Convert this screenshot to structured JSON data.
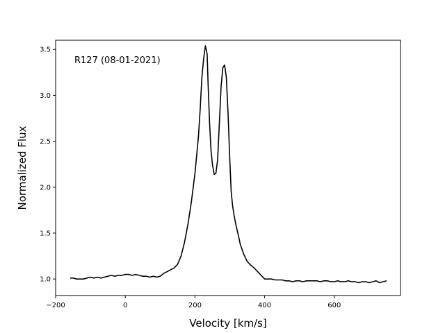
{
  "chart_data": {
    "type": "line",
    "title": "",
    "annotation": "R127 (08-01-2021)",
    "xlabel": "Velocity [km/s]",
    "ylabel": "Normalized Flux",
    "xlim": [
      -200,
      790
    ],
    "ylim": [
      0.82,
      3.6
    ],
    "xticks": [
      -200,
      0,
      200,
      400,
      600
    ],
    "xtick_labels": [
      "−200",
      "0",
      "200",
      "400",
      "600"
    ],
    "yticks": [
      1.0,
      1.5,
      2.0,
      2.5,
      3.0,
      3.5
    ],
    "ytick_labels": [
      "1.0",
      "1.5",
      "2.0",
      "2.5",
      "3.0",
      "3.5"
    ],
    "grid": false,
    "series": [
      {
        "color": "#000000",
        "x": [
          -158,
          -150,
          -140,
          -130,
          -120,
          -110,
          -100,
          -90,
          -80,
          -70,
          -60,
          -50,
          -40,
          -30,
          -20,
          -10,
          0,
          10,
          20,
          30,
          40,
          50,
          60,
          70,
          80,
          90,
          100,
          110,
          120,
          130,
          140,
          150,
          160,
          170,
          180,
          190,
          200,
          210,
          215,
          220,
          225,
          230,
          235,
          238,
          242,
          246,
          250,
          255,
          260,
          265,
          270,
          275,
          280,
          285,
          290,
          295,
          300,
          304,
          308,
          312,
          316,
          320,
          325,
          330,
          340,
          350,
          360,
          370,
          380,
          390,
          400,
          410,
          420,
          430,
          440,
          450,
          460,
          470,
          480,
          490,
          500,
          510,
          520,
          530,
          540,
          550,
          560,
          570,
          580,
          590,
          600,
          610,
          620,
          630,
          640,
          650,
          660,
          670,
          680,
          690,
          700,
          710,
          720,
          730,
          740,
          750
        ],
        "y": [
          1.01,
          1.01,
          1.0,
          1.0,
          1.0,
          1.01,
          1.02,
          1.01,
          1.02,
          1.01,
          1.02,
          1.03,
          1.04,
          1.03,
          1.04,
          1.04,
          1.05,
          1.05,
          1.04,
          1.05,
          1.04,
          1.03,
          1.03,
          1.02,
          1.03,
          1.02,
          1.03,
          1.06,
          1.08,
          1.1,
          1.12,
          1.16,
          1.25,
          1.4,
          1.6,
          1.85,
          2.15,
          2.55,
          2.85,
          3.2,
          3.4,
          3.54,
          3.45,
          3.1,
          2.7,
          2.4,
          2.25,
          2.14,
          2.15,
          2.3,
          2.7,
          3.1,
          3.3,
          3.33,
          3.2,
          2.8,
          2.3,
          1.95,
          1.8,
          1.7,
          1.62,
          1.55,
          1.47,
          1.38,
          1.27,
          1.19,
          1.15,
          1.12,
          1.08,
          1.04,
          1.0,
          1.0,
          1.0,
          0.99,
          0.99,
          0.99,
          0.98,
          0.98,
          0.97,
          0.98,
          0.98,
          0.97,
          0.98,
          0.98,
          0.98,
          0.98,
          0.97,
          0.98,
          0.98,
          0.97,
          0.97,
          0.98,
          0.97,
          0.97,
          0.98,
          0.97,
          0.97,
          0.96,
          0.97,
          0.97,
          0.96,
          0.97,
          0.98,
          0.96,
          0.97,
          0.98
        ]
      }
    ]
  }
}
